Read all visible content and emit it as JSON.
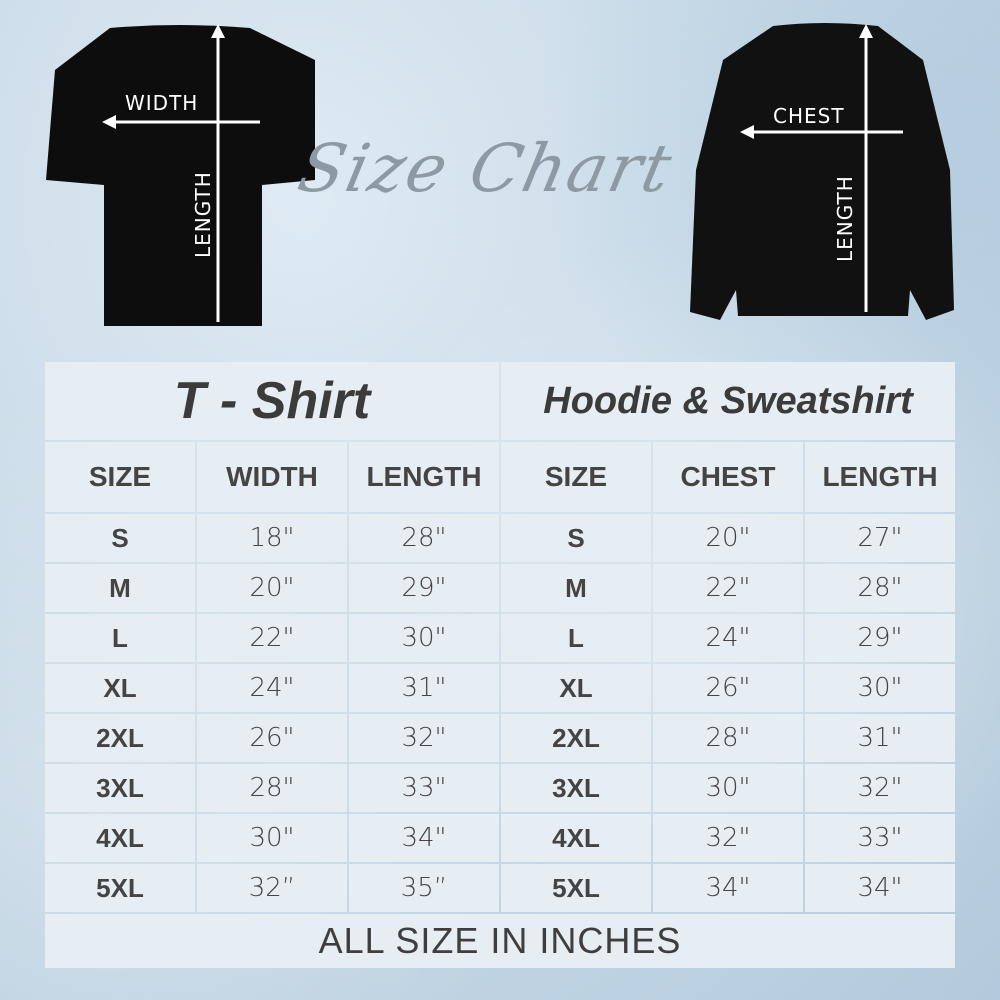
{
  "title": "Size Chart",
  "tshirt_labels": {
    "width": "WIDTH",
    "length": "LENGTH"
  },
  "hoodie_labels": {
    "chest": "CHEST",
    "length": "LENGTH"
  },
  "table": {
    "sections": [
      "T - Shirt",
      "Hoodie & Sweatshirt"
    ],
    "headers": [
      "SIZE",
      "WIDTH",
      "LENGTH",
      "SIZE",
      "CHEST",
      "LENGTH"
    ],
    "rows": [
      [
        "S",
        "18\"",
        "28\"",
        "S",
        "20\"",
        "27\""
      ],
      [
        "M",
        "20\"",
        "29\"",
        "M",
        "22\"",
        "28\""
      ],
      [
        "L",
        "22\"",
        "30\"",
        "L",
        "24\"",
        "29\""
      ],
      [
        "XL",
        "24\"",
        "31\"",
        "XL",
        "26\"",
        "30\""
      ],
      [
        "2XL",
        "26\"",
        "32\"",
        "2XL",
        "28\"",
        "31\""
      ],
      [
        "3XL",
        "28\"",
        "33\"",
        "3XL",
        "30\"",
        "32\""
      ],
      [
        "4XL",
        "30\"",
        "34\"",
        "4XL",
        "32\"",
        "33\""
      ],
      [
        "5XL",
        "32”",
        "35”",
        "5XL",
        "34\"",
        "34\""
      ]
    ],
    "footer": "ALL SIZE IN INCHES"
  }
}
